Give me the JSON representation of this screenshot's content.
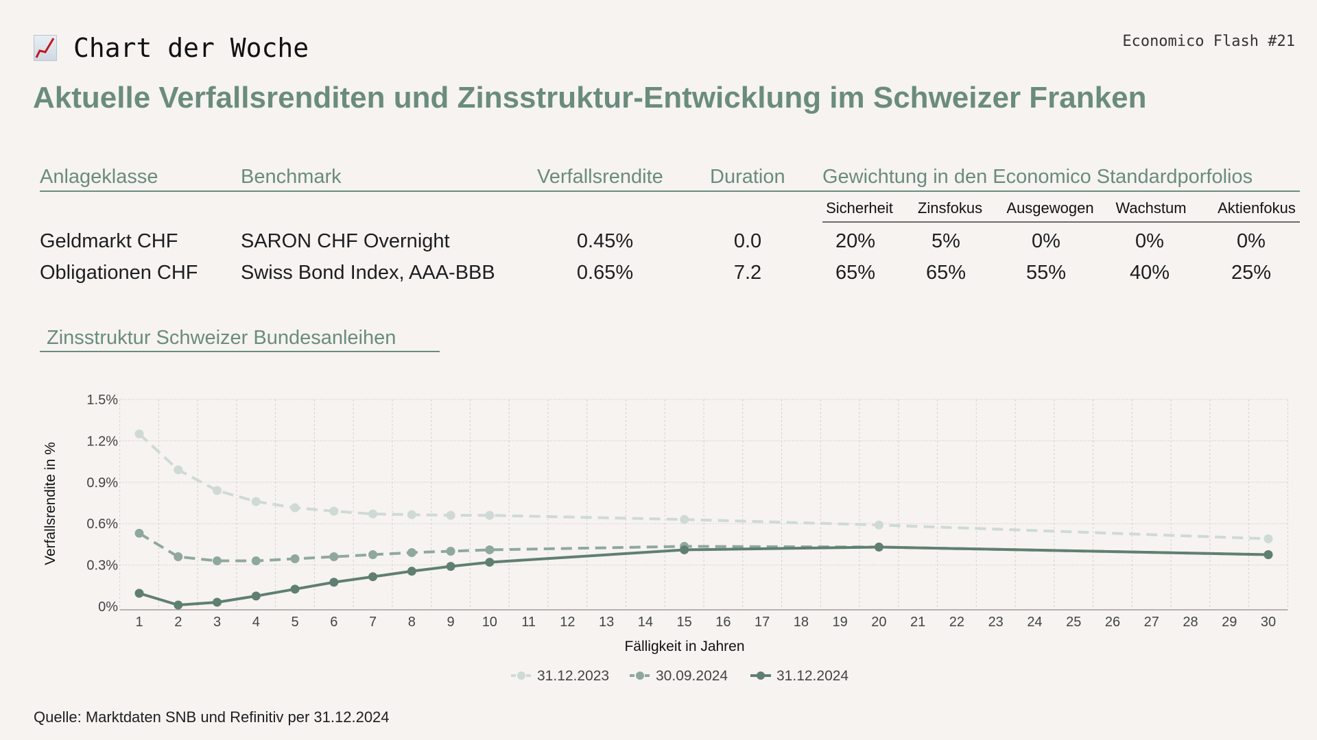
{
  "header": {
    "kicker": "Chart der Woche",
    "kicker_icon": "chart-increasing-emoji",
    "issue": "Economico Flash #21",
    "title": "Aktuelle Verfallsrenditen und Zinsstruktur-Entwicklung im Schweizer Franken"
  },
  "table": {
    "columns": [
      "Anlageklasse",
      "Benchmark",
      "Verfallsrendite",
      "Duration",
      "Gewichtung in den Economico Standardporfolios"
    ],
    "portfolios": [
      "Sicherheit",
      "Zinsfokus",
      "Ausgewogen",
      "Wachstum",
      "Aktienfokus"
    ],
    "rows": [
      {
        "asset": "Geldmarkt CHF",
        "benchmark": "SARON CHF Overnight",
        "ytm": "0.45%",
        "duration": "0.0",
        "weights": [
          "20%",
          "5%",
          "0%",
          "0%",
          "0%"
        ]
      },
      {
        "asset": "Obligationen CHF",
        "benchmark": "Swiss Bond Index, AAA-BBB",
        "ytm": "0.65%",
        "duration": "7.2",
        "weights": [
          "65%",
          "65%",
          "55%",
          "40%",
          "25%"
        ]
      }
    ]
  },
  "section_title": "Zinsstruktur Schweizer Bundesanleihen",
  "source": "Quelle: Marktdaten SNB und Refinitiv per 31.12.2024",
  "colors": {
    "accent": "#6a8c7c",
    "background": "#f6f3f1"
  },
  "chart_data": {
    "type": "line",
    "xlabel": "Fälligkeit in Jahren",
    "ylabel": "Verfallsrendite in %",
    "xlim": [
      1,
      30
    ],
    "ylim": [
      0,
      1.5
    ],
    "x_ticks": [
      1,
      2,
      3,
      4,
      5,
      6,
      7,
      8,
      9,
      10,
      11,
      12,
      13,
      14,
      15,
      16,
      17,
      18,
      19,
      20,
      21,
      22,
      23,
      24,
      25,
      26,
      27,
      28,
      29,
      30
    ],
    "y_ticks": [
      0,
      0.3,
      0.6,
      0.9,
      1.2,
      1.5
    ],
    "y_tick_labels": [
      "0%",
      "0.3%",
      "0.6%",
      "0.9%",
      "1.2%",
      "1.5%"
    ],
    "grid": true,
    "legend_position": "bottom",
    "x": [
      1,
      2,
      3,
      4,
      5,
      6,
      7,
      8,
      9,
      10,
      15,
      20,
      30
    ],
    "series": [
      {
        "name": "31.12.2023",
        "color": "#cfdad5",
        "style": "dashed",
        "values": [
          1.25,
          0.99,
          0.84,
          0.76,
          0.715,
          0.69,
          0.67,
          0.665,
          0.66,
          0.66,
          0.63,
          0.59,
          0.49
        ]
      },
      {
        "name": "30.09.2024",
        "color": "#8fa89d",
        "style": "dashed",
        "values": [
          0.53,
          0.36,
          0.33,
          0.33,
          0.345,
          0.36,
          0.375,
          0.39,
          0.4,
          0.41,
          0.435,
          0.43,
          0.375
        ]
      },
      {
        "name": "31.12.2024",
        "color": "#5f7f71",
        "style": "solid",
        "values": [
          0.095,
          0.01,
          0.03,
          0.075,
          0.125,
          0.175,
          0.215,
          0.255,
          0.29,
          0.32,
          0.41,
          0.43,
          0.375
        ]
      }
    ]
  }
}
